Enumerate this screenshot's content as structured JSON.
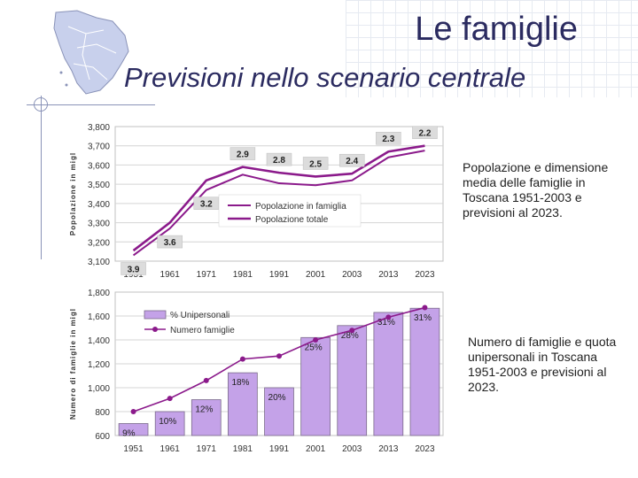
{
  "slide": {
    "title": "Le famiglie",
    "subtitle": "Previsioni nello scenario centrale",
    "caption1": "Popolazione e dimensione media delle famiglie in Toscana 1951-2003 e previsioni al 2023.",
    "caption2": "Numero di famiglie e quota unipersonali in Toscana 1951-2003 e previsioni al 2023."
  },
  "colors": {
    "title": "#2b2b60",
    "line": "#8b1a8b",
    "bar": "#c4a2e8",
    "plot": "#c0c0c0"
  },
  "chart_data": [
    {
      "type": "line",
      "ylabel": "Popolazione in migl",
      "categories": [
        "1951",
        "1961",
        "1971",
        "1981",
        "1991",
        "2001",
        "2003",
        "2013",
        "2023"
      ],
      "yticks": [
        "3,100",
        "3,200",
        "3,300",
        "3,400",
        "3,500",
        "3,600",
        "3,700",
        "3,800"
      ],
      "ylim": [
        3100,
        3800
      ],
      "series": [
        {
          "name": "Popolazione in famiglia",
          "values": [
            3130,
            3270,
            3470,
            3550,
            3505,
            3495,
            3520,
            3640,
            3675
          ]
        },
        {
          "name": "Popolazione totale",
          "values": [
            3155,
            3300,
            3520,
            3590,
            3560,
            3540,
            3555,
            3670,
            3700
          ]
        }
      ],
      "data_labels": [
        "3.9",
        "3.6",
        "3.2",
        "2.9",
        "2.8",
        "2.5",
        "2.4",
        "2.3",
        "2.2"
      ]
    },
    {
      "type": "bar",
      "ylabel": "Numero di famiglie in migl",
      "categories": [
        "1951",
        "1961",
        "1971",
        "1981",
        "1991",
        "2001",
        "2003",
        "2013",
        "2023"
      ],
      "yticks": [
        "600",
        "800",
        "1,000",
        "1,200",
        "1,400",
        "1,600",
        "1,800"
      ],
      "ylim": [
        600,
        1800
      ],
      "series": [
        {
          "name": "% Unipersonali",
          "values": [
            700,
            800,
            900,
            1125,
            1000,
            1420,
            1520,
            1630,
            1665
          ]
        },
        {
          "name": "Numero famiglie",
          "values": [
            800,
            910,
            1060,
            1240,
            1265,
            1400,
            1480,
            1590,
            1670
          ]
        }
      ],
      "data_labels": [
        "9%",
        "10%",
        "12%",
        "18%",
        "20%",
        "25%",
        "28%",
        "31%",
        "31%"
      ]
    }
  ]
}
